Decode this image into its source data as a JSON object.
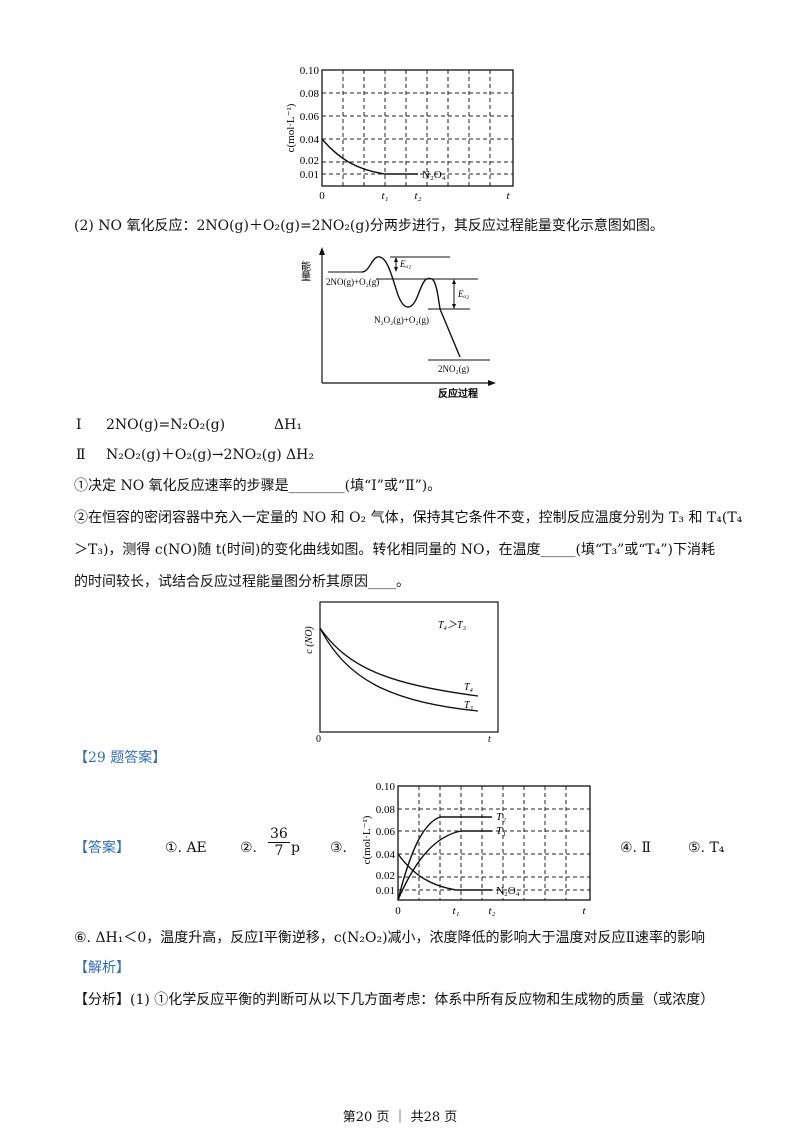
{
  "fig1": {
    "ylabel": "c(mol·L⁻¹)",
    "yticks": [
      "0.10",
      "0.08",
      "0.06",
      "0.04",
      "0.02",
      "0.01"
    ],
    "xticks": [
      "0",
      "t₁",
      "t₂",
      "t"
    ],
    "series_label": "N₂O₄"
  },
  "q2_intro": "(2) NO 氧化反应：2NO(g)＋O₂(g)=2NO₂(g)分两步进行，其反应过程能量变化示意图如图。",
  "fig2": {
    "ylabel": "能量",
    "xlabel": "反应过程",
    "ea1": "Eₐ₁",
    "ea2": "Eₐ₂",
    "level1": "2NO(g)+O₂(g)",
    "level2": "N₂O₂(g)+O₂(g)",
    "level3": "2NO₂(g)"
  },
  "step1": {
    "label": "Ⅰ",
    "eq": "2NO(g)=N₂O₂(g)",
    "dh": "ΔH₁"
  },
  "step2": {
    "label": "Ⅱ",
    "eq": "N₂O₂(g)＋O₂(g)→2NO₂(g)",
    "dh": "ΔH₂"
  },
  "q_a": "①决定 NO 氧化反应速率的步骤是________(填“Ⅰ”或“Ⅱ”)。",
  "q_b1": "②在恒容的密闭容器中充入一定量的 NO 和 O₂ 气体，保持其它条件不变，控制反应温度分别为 T₃ 和 T₄(T₄",
  "q_b2": "＞T₃)，测得 c(NO)随 t(时间)的变化曲线如图。转化相同量的 NO，在温度_____(填“T₃”或“T₄”)下消耗",
  "q_b3": "的时间较长，试结合反应过程能量图分析其原因____。",
  "fig3": {
    "ylabel": "c (NO)",
    "note": "T₄＞T₃",
    "curve_upper": "T₄",
    "curve_lower": "T₃",
    "x0": "0",
    "xend": "t"
  },
  "answer_header": "【29 题答案】",
  "answer_tag": "【答案】",
  "ans1": "①. AE",
  "ans2_prefix": "②.",
  "ans2_num": "36",
  "ans2_den": "7",
  "ans2_suffix": "p",
  "ans3": "③.",
  "fig4": {
    "ylabel": "c(mol·L⁻¹)",
    "yticks": [
      "0.10",
      "0.08",
      "0.06",
      "0.04",
      "0.02",
      "0.01"
    ],
    "xticks": [
      "0",
      "t₁",
      "t₂",
      "t"
    ],
    "curve_t2": "T₂",
    "curve_t1": "T₁",
    "curve_n2o4": "N₂O₄"
  },
  "ans4": "④. Ⅱ",
  "ans5": "⑤. T₄",
  "ans6": "⑥. ΔH₁＜0，温度升高，反应Ⅰ平衡逆移，c(N₂O₂)减小，浓度降低的影响大于温度对反应Ⅱ速率的影响",
  "analysis_tag": "【解析】",
  "analysis_text": "【分析】(1) ①化学反应平衡的判断可从以下几方面考虑：体系中所有反应物和生成物的质量（或浓度）",
  "footer": "第20 页 ｜ 共28 页"
}
